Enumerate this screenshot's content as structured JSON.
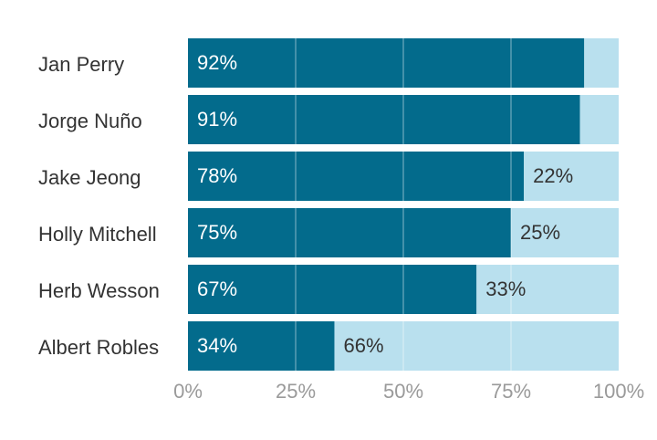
{
  "chart_data": {
    "type": "bar",
    "orientation": "horizontal",
    "stacked": true,
    "categories": [
      "Jan Perry",
      "Jorge Nuño",
      "Jake Jeong",
      "Holly Mitchell",
      "Herb Wesson",
      "Albert Robles"
    ],
    "series": [
      {
        "values": [
          92,
          91,
          78,
          75,
          67,
          34
        ],
        "color": "#036b8c",
        "labels": [
          "92%",
          "91%",
          "78%",
          "75%",
          "67%",
          "34%"
        ]
      },
      {
        "values": [
          8,
          9,
          22,
          25,
          33,
          66
        ],
        "color": "#b9e0ee",
        "labels": [
          "",
          "",
          "22%",
          "25%",
          "33%",
          "66%"
        ]
      }
    ],
    "x_ticks": [
      "0%",
      "25%",
      "50%",
      "75%",
      "100%"
    ],
    "xlim": [
      0,
      100
    ],
    "grid": true,
    "legend": "none"
  }
}
